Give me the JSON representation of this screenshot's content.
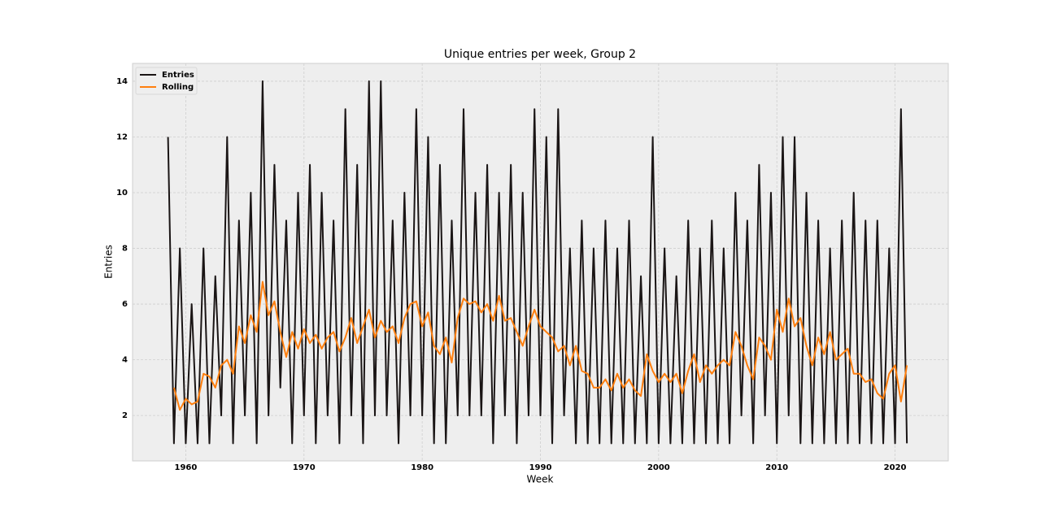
{
  "chart_data": {
    "type": "line",
    "title": "Unique entries per week, Group 2",
    "x_label": "Week",
    "y_label": "Entries",
    "x": [
      1958.5,
      1959,
      1959.5,
      1960,
      1960.5,
      1961,
      1961.5,
      1962,
      1962.5,
      1963,
      1963.5,
      1964,
      1964.5,
      1965,
      1965.5,
      1966,
      1966.5,
      1967,
      1967.5,
      1968,
      1968.5,
      1969,
      1969.5,
      1970,
      1970.5,
      1971,
      1971.5,
      1972,
      1972.5,
      1973,
      1973.5,
      1974,
      1974.5,
      1975,
      1975.5,
      1976,
      1976.5,
      1977,
      1977.5,
      1978,
      1978.5,
      1979,
      1979.5,
      1980,
      1980.5,
      1981,
      1981.5,
      1982,
      1982.5,
      1983,
      1983.5,
      1984,
      1984.5,
      1985,
      1985.5,
      1986,
      1986.5,
      1987,
      1987.5,
      1988,
      1988.5,
      1989,
      1989.5,
      1990,
      1990.5,
      1991,
      1991.5,
      1992,
      1992.5,
      1993,
      1993.5,
      1994,
      1994.5,
      1995,
      1995.5,
      1996,
      1996.5,
      1997,
      1997.5,
      1998,
      1998.5,
      1999,
      1999.5,
      2000,
      2000.5,
      2001,
      2001.5,
      2002,
      2002.5,
      2003,
      2003.5,
      2004,
      2004.5,
      2005,
      2005.5,
      2006,
      2006.5,
      2007,
      2007.5,
      2008,
      2008.5,
      2009,
      2009.5,
      2010,
      2010.5,
      2011,
      2011.5,
      2012,
      2012.5,
      2013,
      2013.5,
      2014,
      2014.5,
      2015,
      2015.5,
      2016,
      2016.5,
      2017,
      2017.5,
      2018,
      2018.5,
      2019,
      2019.5,
      2020,
      2020.5,
      2021
    ],
    "series": [
      {
        "name": "Entries",
        "color": "#1a1515",
        "width": 2,
        "values": [
          12,
          1,
          8,
          1,
          6,
          1,
          8,
          1,
          7,
          2,
          12,
          1,
          9,
          2,
          10,
          1,
          14,
          2,
          11,
          3,
          9,
          1,
          10,
          2,
          11,
          1,
          10,
          2,
          9,
          1,
          13,
          2,
          11,
          1,
          14,
          2,
          14,
          2,
          9,
          1,
          10,
          2,
          13,
          2,
          12,
          1,
          11,
          1,
          9,
          2,
          13,
          2,
          10,
          2,
          11,
          1,
          10,
          2,
          11,
          1,
          10,
          2,
          13,
          2,
          12,
          1,
          13,
          2,
          8,
          1,
          9,
          1,
          8,
          1,
          9,
          1,
          8,
          1,
          9,
          1,
          7,
          1,
          12,
          1,
          8,
          1,
          7,
          1,
          9,
          1,
          8,
          1,
          9,
          1,
          8,
          1,
          10,
          2,
          9,
          1,
          11,
          2,
          10,
          1,
          12,
          2,
          12,
          1,
          10,
          1,
          9,
          1,
          8,
          1,
          9,
          1,
          10,
          1,
          9,
          1,
          9,
          1,
          8,
          1,
          13,
          1
        ]
      },
      {
        "name": "Rolling",
        "color": "#ff7f0e",
        "width": 2,
        "values": [
          null,
          3.0,
          2.2,
          2.6,
          2.4,
          2.5,
          3.5,
          3.4,
          3.0,
          3.8,
          4.0,
          3.5,
          5.2,
          4.6,
          5.6,
          5.0,
          6.8,
          5.6,
          6.1,
          5.0,
          4.1,
          5.0,
          4.4,
          5.1,
          4.6,
          4.9,
          4.4,
          4.8,
          5.0,
          4.3,
          4.8,
          5.5,
          4.6,
          5.2,
          5.8,
          4.8,
          5.4,
          5.0,
          5.2,
          4.6,
          5.5,
          6.0,
          6.1,
          5.2,
          5.7,
          4.5,
          4.2,
          4.8,
          3.9,
          5.5,
          6.2,
          6.0,
          6.1,
          5.7,
          6.0,
          5.4,
          6.3,
          5.4,
          5.5,
          5.0,
          4.5,
          5.2,
          5.8,
          5.2,
          5.0,
          4.8,
          4.3,
          4.5,
          3.8,
          4.5,
          3.6,
          3.5,
          3.0,
          3.0,
          3.3,
          2.9,
          3.5,
          3.0,
          3.3,
          2.9,
          2.7,
          4.2,
          3.6,
          3.2,
          3.5,
          3.2,
          3.5,
          2.8,
          3.6,
          4.2,
          3.2,
          3.8,
          3.5,
          3.8,
          4.0,
          3.8,
          5.0,
          4.5,
          3.8,
          3.3,
          4.8,
          4.5,
          4.0,
          5.8,
          5.0,
          6.2,
          5.2,
          5.5,
          4.5,
          3.8,
          4.8,
          4.2,
          5.0,
          4.0,
          4.2,
          4.4,
          3.5,
          3.5,
          3.2,
          3.3,
          2.8,
          2.6,
          3.5,
          3.8,
          2.5,
          3.8
        ]
      }
    ],
    "xlim": [
      1955.5,
      2024.5
    ],
    "ylim": [
      0.37,
      14.64
    ],
    "xticks": [
      1960,
      1970,
      1980,
      1990,
      2000,
      2010,
      2020
    ],
    "yticks": [
      2,
      4,
      6,
      8,
      10,
      12,
      14
    ],
    "grid": true,
    "legend": "upper-left"
  }
}
